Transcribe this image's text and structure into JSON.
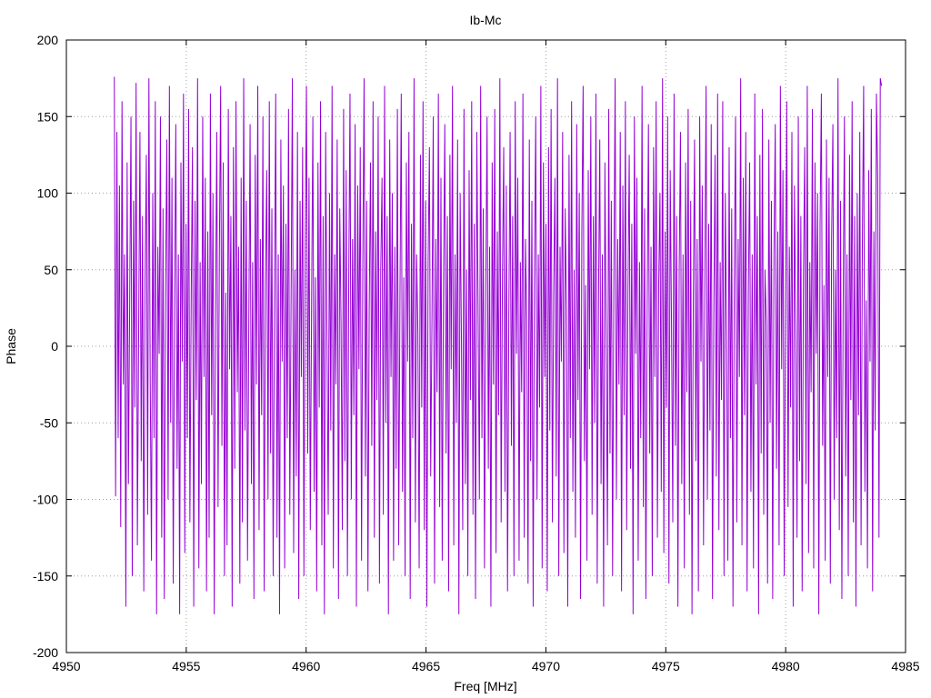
{
  "chart_data": {
    "type": "line",
    "title": "Ib-Mc",
    "xlabel": "Freq [MHz]",
    "ylabel": "Phase",
    "xlim": [
      4950,
      4985
    ],
    "ylim": [
      -200,
      200
    ],
    "xticks": [
      4950,
      4955,
      4960,
      4965,
      4970,
      4975,
      4980,
      4985
    ],
    "yticks": [
      -200,
      -150,
      -100,
      -50,
      0,
      50,
      100,
      150,
      200
    ],
    "grid": true,
    "color": "#9400d3",
    "series": [
      {
        "x_start": 4952.0,
        "x_end": 4984.0,
        "samples": 600,
        "values": [
          176,
          -98,
          140,
          -60,
          105,
          -118,
          160,
          -25,
          60,
          -170,
          120,
          -90,
          30,
          150,
          -150,
          95,
          -40,
          172,
          -130,
          10,
          140,
          -75,
          85,
          -160,
          45,
          125,
          -110,
          175,
          -20,
          -140,
          100,
          -60,
          160,
          -175,
          65,
          -5,
          150,
          -125,
          90,
          -165,
          40,
          135,
          -100,
          170,
          -50,
          110,
          -155,
          25,
          145,
          -80,
          60,
          -175,
          120,
          -10,
          165,
          -135,
          80,
          -60,
          155,
          -115,
          30,
          130,
          -170,
          95,
          -35,
          175,
          -145,
          55,
          -90,
          150,
          -20,
          110,
          -160,
          75,
          -125,
          165,
          -45,
          100,
          -175,
          20,
          140,
          -105,
          60,
          170,
          -65,
          120,
          -150,
          35,
          -130,
          155,
          -15,
          85,
          -170,
          130,
          -80,
          160,
          -30,
          65,
          -155,
          110,
          -115,
          175,
          -55,
          95,
          -140,
          15,
          145,
          -90,
          55,
          -165,
          125,
          -25,
          170,
          -120,
          70,
          -45,
          150,
          -160,
          40,
          115,
          -100,
          160,
          -70,
          90,
          -150,
          20,
          165,
          -125,
          60,
          -175,
          135,
          -10,
          105,
          -145,
          80,
          -60,
          155,
          -110,
          30,
          175,
          -135,
          50,
          -85,
          140,
          -165,
          95,
          -20,
          130,
          -150,
          65,
          170,
          -70,
          110,
          -120,
          25,
          150,
          -95,
          45,
          -160,
          120,
          -40,
          160,
          -130,
          85,
          -175,
          140,
          5,
          -110,
          100,
          -55,
          170,
          -145,
          60,
          -25,
          135,
          -165,
          90,
          15,
          -120,
          155,
          -75,
          115,
          -150,
          40,
          165,
          -100,
          70,
          -45,
          145,
          -170,
          105,
          -15,
          130,
          -140,
          55,
          175,
          -85,
          95,
          -160,
          25,
          120,
          -65,
          160,
          -125,
          75,
          -35,
          150,
          -155,
          50,
          110,
          -110,
          170,
          -50,
          85,
          -175,
          135,
          -20,
          100,
          -140,
          65,
          -80,
          155,
          -130,
          30,
          165,
          -95,
          45,
          -150,
          120,
          -10,
          140,
          -165,
          80,
          -60,
          175,
          -115,
          60,
          10,
          -145,
          125,
          -40,
          160,
          -120,
          95,
          -170,
          55,
          130,
          -85,
          20,
          150,
          -155,
          70,
          -30,
          165,
          -105,
          110,
          -140,
          40,
          145,
          -70,
          85,
          -160,
          125,
          -15,
          170,
          -130,
          60,
          -50,
          135,
          -175,
          100,
          5,
          -120,
          155,
          -90,
          50,
          -150,
          115,
          -35,
          160,
          -110,
          80,
          -165,
          140,
          25,
          -100,
          170,
          -60,
          90,
          -145,
          35,
          150,
          -80,
          65,
          -170,
          120,
          -25,
          155,
          -135,
          75,
          -45,
          175,
          -115,
          45,
          130,
          -95,
          105,
          -160,
          20,
          140,
          -65,
          85,
          -150,
          160,
          -5,
          110,
          -140,
          55,
          -30,
          165,
          -125,
          70,
          15,
          -155,
          135,
          -75,
          95,
          -170,
          45,
          150,
          -100,
          60,
          -40,
          170,
          -145,
          120,
          -20,
          80,
          -160,
          130,
          -55,
          155,
          -115,
          35,
          110,
          -85,
          175,
          -150,
          65,
          -10,
          140,
          -135,
          90,
          25,
          -170,
          125,
          -60,
          160,
          -95,
          50,
          -125,
          145,
          -35,
          100,
          -165,
          75,
          170,
          -75,
          40,
          -140,
          115,
          -15,
          150,
          -110,
          85,
          -50,
          165,
          -155,
          30,
          135,
          -90,
          60,
          -170,
          120,
          10,
          -130,
          155,
          -70,
          95,
          -150,
          45,
          175,
          -100,
          70,
          -25,
          140,
          -160,
          105,
          -45,
          160,
          -120,
          35,
          125,
          -80,
          80,
          -175,
          150,
          -5,
          110,
          -140,
          55,
          -60,
          170,
          -105,
          90,
          -165,
          25,
          145,
          -70,
          65,
          -150,
          130,
          -20,
          160,
          -125,
          40,
          100,
          -95,
          175,
          -135,
          75,
          -40,
          150,
          -155,
          115,
          15,
          -115,
          165,
          -65,
          85,
          -170,
          50,
          140,
          -90,
          60,
          -145,
          120,
          -30,
          155,
          -110,
          95,
          -175,
          30,
          135,
          -75,
          70,
          -160,
          150,
          -10,
          105,
          -130,
          45,
          170,
          -100,
          80,
          -55,
          145,
          -165,
          20,
          125,
          -85,
          165,
          -120,
          55,
          -35,
          160,
          -150,
          100,
          5,
          -140,
          130,
          -60,
          90,
          -170,
          40,
          150,
          -115,
          70,
          -20,
          175,
          -130,
          110,
          -45,
          140,
          -160,
          35,
          120,
          -95,
          60,
          -145,
          165,
          -25,
          85,
          -175,
          125,
          -70,
          155,
          -110,
          50,
          15,
          -155,
          135,
          -50,
          95,
          -165,
          60,
          145,
          -80,
          75,
          -130,
          170,
          -15,
          115,
          -150,
          30,
          160,
          -105,
          65,
          -40,
          140,
          -170,
          105,
          10,
          -125,
          150,
          -75,
          85,
          -160,
          45,
          130,
          -90,
          170,
          -135,
          55,
          -30,
          155,
          -145,
          120,
          -5,
          100,
          -175,
          80,
          165,
          -65,
          40,
          -140,
          135,
          -20,
          110,
          -155,
          70,
          145,
          -100,
          50,
          -60,
          175,
          -120,
          95,
          -165,
          25,
          150,
          -85,
          60,
          -150,
          125,
          -35,
          160,
          -115,
          85,
          -170,
          100,
          -45,
          140,
          -130,
          65,
          170,
          -95,
          30,
          -145,
          115,
          -10,
          155,
          -160,
          75,
          -55,
          165,
          110,
          -125,
          175,
          170
        ]
      }
    ]
  }
}
